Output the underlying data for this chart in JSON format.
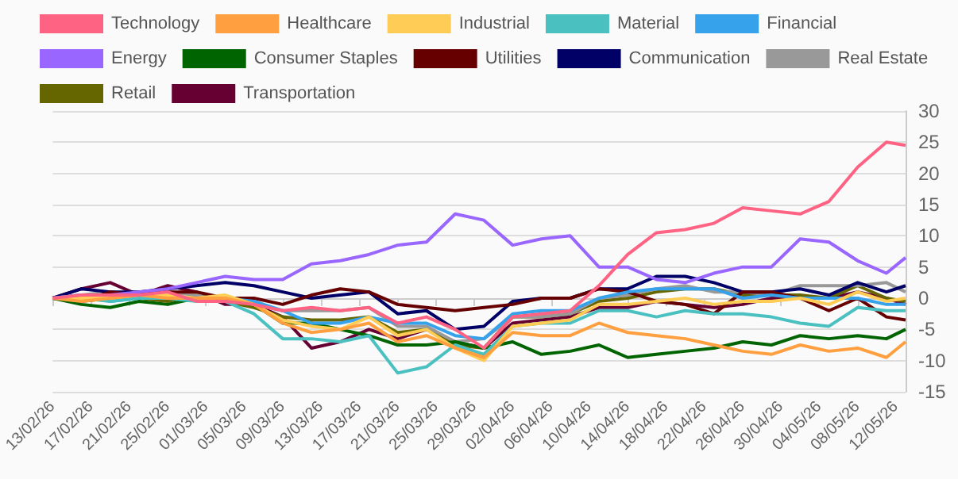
{
  "chart_data": {
    "type": "line",
    "x": [
      "--02-13",
      "--02-16",
      "--02-19",
      "--02-22",
      "--02-25",
      "--02-28",
      "--03-03",
      "--03-06",
      "--03-09",
      "--03-12",
      "--03-15",
      "--03-18",
      "--03-21",
      "--03-24",
      "--03-27",
      "--03-30",
      "--04-02",
      "--04-05",
      "--04-08",
      "--04-11",
      "--04-14",
      "--04-17",
      "--04-20",
      "--04-23",
      "--04-26",
      "--04-29",
      "--05-02",
      "--05-05",
      "--05-08",
      "--05-11",
      "--05-13"
    ],
    "series": [
      {
        "name": "Technology",
        "color": "#ff6384",
        "values": [
          0,
          0.5,
          0.5,
          0.5,
          1,
          -0.5,
          -0.5,
          -1,
          -2,
          -1.5,
          -2,
          -1.5,
          -4,
          -3,
          -5,
          -8,
          -3,
          -2.5,
          -2,
          2,
          7,
          10.5,
          11,
          12,
          14.5,
          14,
          13.5,
          15.5,
          21,
          25,
          24.5
        ]
      },
      {
        "name": "Healthcare",
        "color": "#ff9f40",
        "values": [
          0,
          -0.5,
          0,
          0.5,
          0,
          0,
          0,
          -1,
          -4,
          -5.5,
          -5,
          -4,
          -7,
          -6,
          -8,
          -9.5,
          -5.5,
          -6,
          -6,
          -4,
          -5.5,
          -6,
          -6.5,
          -7.5,
          -8.5,
          -9,
          -7.5,
          -8.5,
          -8,
          -9.5,
          -7
        ]
      },
      {
        "name": "Industrial",
        "color": "#ffcd56",
        "values": [
          0,
          0,
          0,
          0.5,
          0.5,
          0,
          0.5,
          -1,
          -3.5,
          -4.5,
          -5,
          -3,
          -6,
          -5,
          -8,
          -10,
          -4.5,
          -4,
          -3.5,
          -1,
          -1,
          -0.5,
          0,
          -1,
          -0.5,
          -0.5,
          0,
          -1,
          1,
          -0.5,
          0
        ]
      },
      {
        "name": "Material",
        "color": "#4bc0c0",
        "values": [
          0,
          0,
          -0.5,
          0,
          0,
          -0.5,
          -0.5,
          -2.5,
          -6.5,
          -6.5,
          -7,
          -6,
          -12,
          -11,
          -7.5,
          -9,
          -4.5,
          -4,
          -4,
          -2,
          -2,
          -3,
          -2,
          -2.5,
          -2.5,
          -3,
          -4,
          -4.5,
          -1.5,
          -2,
          -2
        ]
      },
      {
        "name": "Financial",
        "color": "#36a2eb",
        "values": [
          0,
          0.5,
          -0.5,
          0,
          0.5,
          0,
          0,
          -0.5,
          -2,
          -4,
          -4,
          -3,
          -4,
          -4,
          -6,
          -6.5,
          -2.5,
          -2,
          -2,
          0,
          1,
          1.5,
          1.5,
          1.5,
          0,
          0.5,
          0,
          0,
          0,
          -1,
          -1
        ]
      },
      {
        "name": "Energy",
        "color": "#9966ff",
        "values": [
          0,
          0.5,
          0.5,
          1,
          1.5,
          2.5,
          3.5,
          3,
          3,
          5.5,
          6,
          7,
          8.5,
          9,
          13.5,
          12.5,
          8.5,
          9.5,
          10,
          5,
          5,
          3,
          2.5,
          4,
          5,
          5,
          9.5,
          9,
          6,
          4,
          6.5
        ]
      },
      {
        "name": "Consumer Staples",
        "color": "#006400",
        "values": [
          0,
          -1,
          -1.5,
          -0.5,
          -1,
          0,
          0,
          -1,
          -4,
          -4,
          -5,
          -6,
          -7.5,
          -7.5,
          -7,
          -8,
          -7,
          -9,
          -8.5,
          -7.5,
          -9.5,
          -9,
          -8.5,
          -8,
          -7,
          -7.5,
          -6,
          -6.5,
          -6,
          -6.5,
          -5
        ]
      },
      {
        "name": "Utilities",
        "color": "#660000",
        "values": [
          0,
          -0.5,
          1,
          0.5,
          1,
          1,
          0,
          0,
          -1,
          0.5,
          1.5,
          1,
          -1,
          -1.5,
          -2,
          -1.5,
          -1,
          0,
          0,
          1.5,
          1,
          -0.5,
          -1,
          -2.5,
          1,
          1,
          0,
          -2,
          0,
          -3,
          -3.5
        ]
      },
      {
        "name": "Communication",
        "color": "#000066",
        "values": [
          0,
          1.5,
          1,
          1,
          1.5,
          2,
          2.5,
          2,
          1,
          0,
          0.5,
          1,
          -2.5,
          -2,
          -5,
          -4.5,
          -0.5,
          0,
          0,
          1.5,
          1.5,
          3.5,
          3.5,
          2.5,
          1,
          1,
          1.5,
          0.5,
          2.5,
          1,
          2
        ]
      },
      {
        "name": "Real Estate",
        "color": "#999999",
        "values": [
          0,
          0.5,
          1,
          0.5,
          1,
          0.5,
          0,
          -1,
          -2,
          -2,
          -2,
          -1.5,
          -4.5,
          -4.5,
          -7,
          -6.5,
          -3,
          -3,
          -2.5,
          0,
          0.5,
          1.5,
          2,
          1,
          1,
          0.5,
          2,
          2,
          2,
          2.5,
          1
        ]
      },
      {
        "name": "Retail",
        "color": "#666600",
        "values": [
          0,
          -0.5,
          0,
          0,
          -0.5,
          0.5,
          -0.5,
          -1.5,
          -3,
          -3.5,
          -3.5,
          -3,
          -5.5,
          -5,
          -7.5,
          -8,
          -3,
          -3,
          -2.5,
          -0.5,
          0,
          1,
          1.5,
          1.5,
          0.5,
          0.5,
          0.5,
          0,
          2,
          0,
          -0.5
        ]
      },
      {
        "name": "Transportation",
        "color": "#660033",
        "values": [
          0,
          1.5,
          2.5,
          0.5,
          2,
          1,
          -1,
          -1,
          -3,
          -8,
          -7,
          -5,
          -6.5,
          -5,
          -7,
          -8,
          -4,
          -3.5,
          -3,
          -1.5,
          -1.5,
          -0.5,
          -1,
          -1.5,
          -1,
          0,
          0,
          0,
          1,
          0,
          -1
        ]
      }
    ],
    "xlim": [
      "--02-13",
      "--05-13"
    ],
    "xticks": [
      {
        "value": "--02-13",
        "label": "13/02/26"
      },
      {
        "value": "--02-17",
        "label": "17/02/26"
      },
      {
        "value": "--02-21",
        "label": "21/02/26"
      },
      {
        "value": "--02-25",
        "label": "25/02/26"
      },
      {
        "value": "--03-01",
        "label": "01/03/26"
      },
      {
        "value": "--03-05",
        "label": "05/03/26"
      },
      {
        "value": "--03-09",
        "label": "09/03/26"
      },
      {
        "value": "--03-13",
        "label": "13/03/26"
      },
      {
        "value": "--03-17",
        "label": "17/03/26"
      },
      {
        "value": "--03-21",
        "label": "21/03/26"
      },
      {
        "value": "--03-25",
        "label": "25/03/26"
      },
      {
        "value": "--03-29",
        "label": "29/03/26"
      },
      {
        "value": "--04-02",
        "label": "02/04/26"
      },
      {
        "value": "--04-06",
        "label": "06/04/26"
      },
      {
        "value": "--04-10",
        "label": "10/04/26"
      },
      {
        "value": "--04-14",
        "label": "14/04/26"
      },
      {
        "value": "--04-18",
        "label": "18/04/26"
      },
      {
        "value": "--04-22",
        "label": "22/04/26"
      },
      {
        "value": "--04-26",
        "label": "26/04/26"
      },
      {
        "value": "--04-30",
        "label": "30/04/26"
      },
      {
        "value": "--05-04",
        "label": "04/05/26"
      },
      {
        "value": "--05-08",
        "label": "08/05/26"
      },
      {
        "value": "--05-12",
        "label": "12/05/26"
      }
    ],
    "ylim": [
      -15,
      30
    ],
    "yticks": [
      -15,
      -10,
      -5,
      0,
      5,
      10,
      15,
      20,
      25,
      30
    ],
    "grid": "y",
    "legend": "top",
    "marker": "none",
    "line_style": "solid"
  }
}
